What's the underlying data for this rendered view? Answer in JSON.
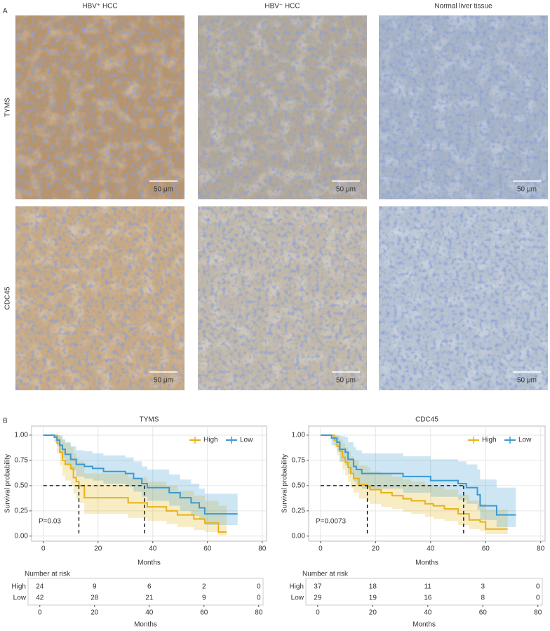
{
  "panel_a": {
    "label": "A",
    "columns": [
      "HBV⁺ HCC",
      "HBV⁻ HCC",
      "Normal liver tissue"
    ],
    "rows": [
      "TYMS",
      "CDC45"
    ],
    "scale_bars": [
      [
        "50 μm",
        "50 μm",
        "50 μm"
      ],
      [
        "50 μm",
        "50 μm",
        "50 μm"
      ]
    ]
  },
  "panel_b_label": "B",
  "chart_data": [
    {
      "type": "step",
      "title": "TYMS",
      "x_label": "Months",
      "y_label": "Survival probability",
      "xlim": [
        -4.3,
        81.6
      ],
      "xticks": [
        0,
        20,
        40,
        60,
        80
      ],
      "ylim": [
        -0.05,
        1.09
      ],
      "yticks": [
        {
          "value": 0,
          "label": "0.00"
        },
        {
          "value": 0.25,
          "label": "0.25"
        },
        {
          "value": 0.5,
          "label": "0.50"
        },
        {
          "value": 0.75,
          "label": "0.75"
        },
        {
          "value": 1,
          "label": "1.00"
        }
      ],
      "grid": true,
      "legend_position": "top-right",
      "annotation": "P=0.03",
      "median_lines": {
        "y": 0.5,
        "x": [
          13,
          37
        ]
      },
      "series": [
        {
          "name": "High",
          "color": "#e5b318",
          "x": [
            0,
            5,
            6,
            7,
            8,
            10,
            11,
            12,
            13,
            15,
            31,
            38,
            45,
            49,
            55,
            59,
            64,
            67
          ],
          "values": [
            1,
            0.92,
            0.83,
            0.75,
            0.71,
            0.67,
            0.58,
            0.54,
            0.5,
            0.38,
            0.33,
            0.29,
            0.25,
            0.21,
            0.17,
            0.13,
            0.04,
            0.04
          ],
          "lower": [
            1,
            0.82,
            0.7,
            0.6,
            0.55,
            0.5,
            0.42,
            0.37,
            0.33,
            0.22,
            0.18,
            0.15,
            0.12,
            0.09,
            0.06,
            0.04,
            0.01,
            0.01
          ],
          "upper": [
            1,
            1,
            1,
            0.95,
            0.92,
            0.88,
            0.82,
            0.78,
            0.74,
            0.62,
            0.58,
            0.54,
            0.5,
            0.45,
            0.4,
            0.35,
            0.3,
            0.3
          ]
        },
        {
          "name": "Low",
          "color": "#3a9ad0",
          "x": [
            0,
            4,
            5,
            6,
            7,
            8,
            10,
            12,
            15,
            18,
            22,
            30,
            33,
            36,
            38,
            46,
            50,
            54,
            57,
            59,
            71
          ],
          "values": [
            1,
            0.98,
            0.95,
            0.9,
            0.86,
            0.81,
            0.76,
            0.71,
            0.69,
            0.67,
            0.64,
            0.62,
            0.57,
            0.52,
            0.48,
            0.43,
            0.38,
            0.33,
            0.28,
            0.22,
            0.22
          ],
          "lower": [
            1,
            0.93,
            0.89,
            0.82,
            0.77,
            0.71,
            0.65,
            0.59,
            0.57,
            0.55,
            0.52,
            0.49,
            0.44,
            0.39,
            0.35,
            0.3,
            0.25,
            0.2,
            0.16,
            0.11,
            0.11
          ],
          "upper": [
            1,
            1,
            1,
            0.99,
            0.96,
            0.93,
            0.89,
            0.85,
            0.84,
            0.82,
            0.8,
            0.78,
            0.74,
            0.69,
            0.66,
            0.61,
            0.56,
            0.52,
            0.47,
            0.42,
            0.42
          ]
        }
      ],
      "risk_table": {
        "title": "Number at risk",
        "x_label": "Months",
        "x": [
          0,
          20,
          40,
          60,
          80
        ],
        "rows": [
          {
            "name": "High",
            "color": "#e5b318",
            "values": [
              24,
              9,
              6,
              2,
              0
            ]
          },
          {
            "name": "Low",
            "color": "#3a9ad0",
            "values": [
              42,
              28,
              21,
              9,
              0
            ]
          }
        ]
      }
    },
    {
      "type": "step",
      "title": "CDC45",
      "x_label": "Months",
      "y_label": "Survival probability",
      "xlim": [
        -4.3,
        81.6
      ],
      "xticks": [
        0,
        20,
        40,
        60,
        80
      ],
      "ylim": [
        -0.05,
        1.09
      ],
      "yticks": [
        {
          "value": 0,
          "label": "0.00"
        },
        {
          "value": 0.25,
          "label": "0.25"
        },
        {
          "value": 0.5,
          "label": "0.50"
        },
        {
          "value": 0.75,
          "label": "0.75"
        },
        {
          "value": 1,
          "label": "1.00"
        }
      ],
      "grid": true,
      "legend_position": "top-right",
      "annotation": "P=0.0073",
      "median_lines": {
        "y": 0.5,
        "x": [
          17,
          52
        ]
      },
      "series": [
        {
          "name": "High",
          "color": "#e5b318",
          "x": [
            0,
            5,
            6,
            7,
            8,
            9,
            10,
            11,
            12,
            14,
            17,
            18,
            22,
            26,
            30,
            33,
            38,
            41,
            45,
            50,
            54,
            58,
            60,
            68
          ],
          "values": [
            1,
            0.95,
            0.89,
            0.84,
            0.78,
            0.73,
            0.68,
            0.62,
            0.57,
            0.51,
            0.49,
            0.46,
            0.43,
            0.4,
            0.37,
            0.35,
            0.32,
            0.3,
            0.27,
            0.22,
            0.16,
            0.14,
            0.07,
            0.07
          ],
          "lower": [
            1,
            0.88,
            0.8,
            0.73,
            0.66,
            0.6,
            0.54,
            0.48,
            0.43,
            0.37,
            0.35,
            0.32,
            0.29,
            0.27,
            0.24,
            0.22,
            0.19,
            0.17,
            0.15,
            0.11,
            0.07,
            0.05,
            0.02,
            0.02
          ],
          "upper": [
            1,
            1,
            0.99,
            0.96,
            0.92,
            0.88,
            0.84,
            0.79,
            0.75,
            0.7,
            0.68,
            0.64,
            0.62,
            0.59,
            0.56,
            0.54,
            0.51,
            0.49,
            0.46,
            0.41,
            0.35,
            0.32,
            0.26,
            0.26
          ]
        },
        {
          "name": "Low",
          "color": "#3a9ad0",
          "x": [
            0,
            4,
            6,
            7,
            9,
            10,
            12,
            13,
            15,
            20,
            30,
            40,
            50,
            53,
            57,
            58,
            62,
            64,
            71
          ],
          "values": [
            1,
            0.97,
            0.93,
            0.86,
            0.83,
            0.76,
            0.69,
            0.66,
            0.62,
            0.62,
            0.59,
            0.55,
            0.52,
            0.48,
            0.41,
            0.3,
            0.3,
            0.21,
            0.21
          ],
          "lower": [
            1,
            0.9,
            0.84,
            0.74,
            0.7,
            0.62,
            0.54,
            0.51,
            0.47,
            0.47,
            0.43,
            0.39,
            0.36,
            0.32,
            0.26,
            0.16,
            0.16,
            0.09,
            0.09
          ],
          "upper": [
            1,
            1,
            1,
            0.99,
            0.98,
            0.93,
            0.88,
            0.85,
            0.82,
            0.82,
            0.79,
            0.76,
            0.74,
            0.71,
            0.66,
            0.56,
            0.56,
            0.48,
            0.48
          ]
        }
      ],
      "risk_table": {
        "title": "Number at risk",
        "x_label": "Months",
        "x": [
          0,
          20,
          40,
          60,
          80
        ],
        "rows": [
          {
            "name": "High",
            "color": "#e5b318",
            "values": [
              37,
              18,
              11,
              3,
              0
            ]
          },
          {
            "name": "Low",
            "color": "#3a9ad0",
            "values": [
              29,
              19,
              16,
              8,
              0
            ]
          }
        ]
      }
    }
  ]
}
